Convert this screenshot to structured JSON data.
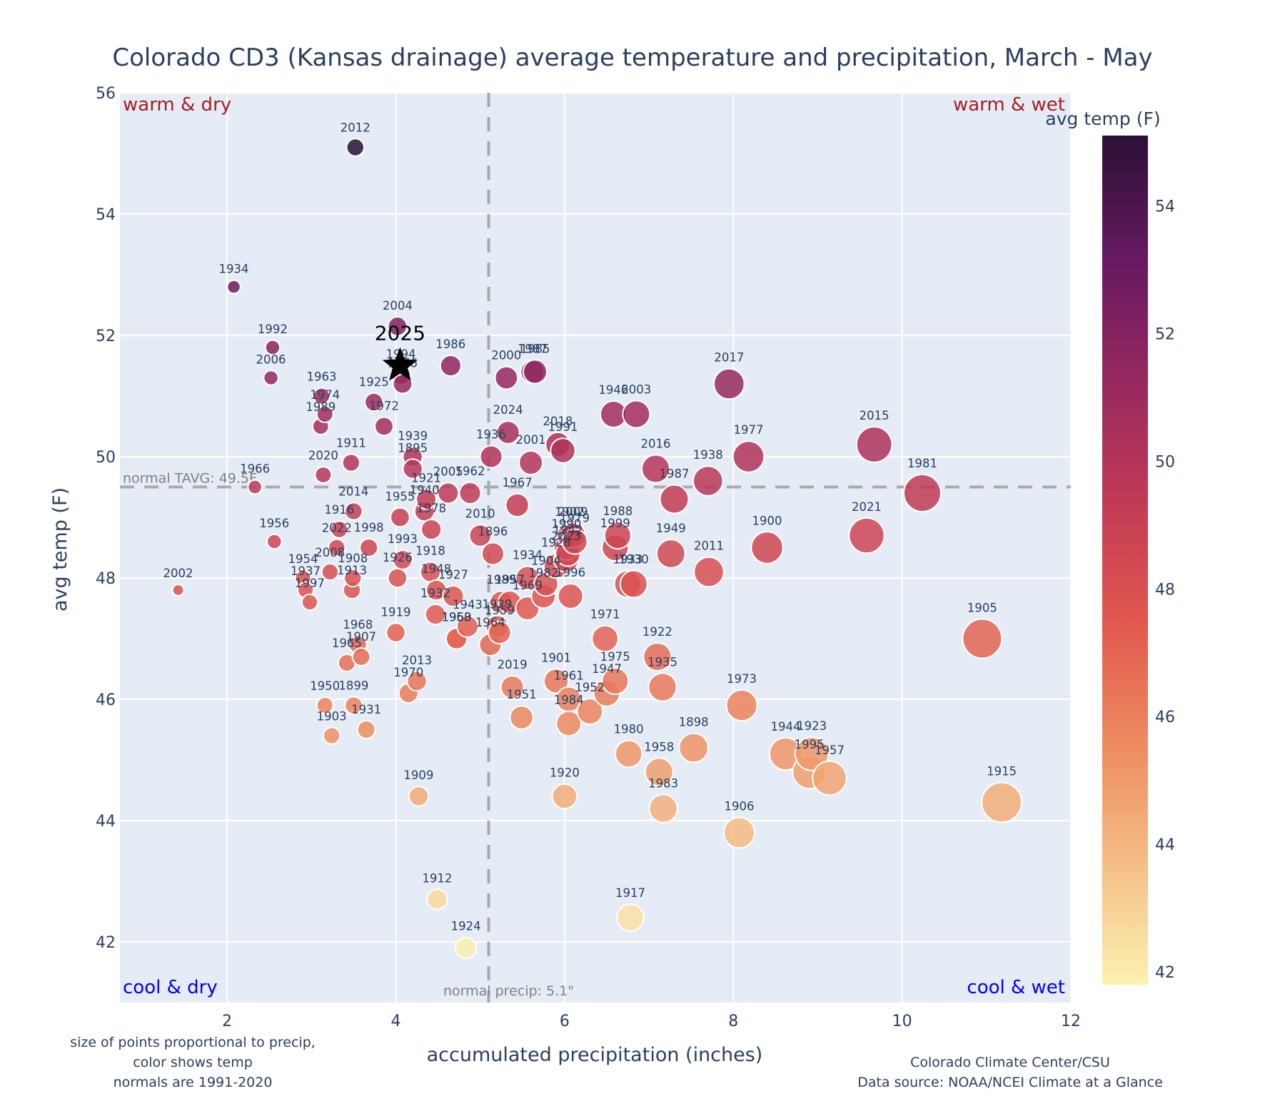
{
  "chart_data": {
    "type": "scatter",
    "title": "Colorado CD3 (Kansas drainage) average temperature and precipitation, March - May",
    "xlabel": "accumulated precipitation (inches)",
    "ylabel": "avg temp (F)",
    "xlim": [
      0.73,
      12
    ],
    "ylim": [
      41.0,
      56.0
    ],
    "xticks": [
      2,
      4,
      6,
      8,
      10,
      12
    ],
    "yticks": [
      42,
      44,
      46,
      48,
      50,
      52,
      54,
      56
    ],
    "grid": true,
    "size_encoding": "precip",
    "color_encoding": "avg temp",
    "colorbar": {
      "title": "avg temp (F)",
      "range": [
        41.8,
        55.1
      ],
      "ticks": [
        42,
        44,
        46,
        48,
        50,
        52,
        54
      ],
      "colorscale": [
        "#fcf1b2",
        "#f5be86",
        "#ed8a5f",
        "#e0584f",
        "#c03a55",
        "#95285f",
        "#651960",
        "#2b1134"
      ]
    },
    "reference_lines": {
      "normal_temp": {
        "value": 49.5,
        "label": "normal TAVG: 49.5F"
      },
      "normal_precip": {
        "value": 5.1,
        "label": "normal precip: 5.1\""
      }
    },
    "quadrant_labels": {
      "top_left": "warm & dry",
      "top_right": "warm & wet",
      "bottom_left": "cool & dry",
      "bottom_right": "cool & wet"
    },
    "highlight": {
      "label": "2025",
      "x": 4.05,
      "y": 51.5,
      "marker": "star"
    },
    "points": [
      {
        "year": "2012",
        "x": 3.52,
        "y": 55.1
      },
      {
        "year": "1934",
        "x": 2.08,
        "y": 52.8
      },
      {
        "year": "2004",
        "x": 4.02,
        "y": 52.15
      },
      {
        "year": "1992",
        "x": 2.54,
        "y": 51.8
      },
      {
        "year": "2006",
        "x": 2.52,
        "y": 51.3
      },
      {
        "year": "1994",
        "x": 4.06,
        "y": 51.35
      },
      {
        "year": "1976",
        "x": 4.08,
        "y": 51.2
      },
      {
        "year": "1963",
        "x": 3.12,
        "y": 51.0
      },
      {
        "year": "1974",
        "x": 3.16,
        "y": 50.7
      },
      {
        "year": "1989",
        "x": 3.11,
        "y": 50.5
      },
      {
        "year": "1925",
        "x": 3.74,
        "y": 50.9
      },
      {
        "year": "1972",
        "x": 3.86,
        "y": 50.5
      },
      {
        "year": "1986",
        "x": 4.65,
        "y": 51.5
      },
      {
        "year": "2000",
        "x": 5.31,
        "y": 51.3
      },
      {
        "year": "1987",
        "x": 5.62,
        "y": 51.4
      },
      {
        "year": "1985",
        "x": 5.65,
        "y": 51.4
      },
      {
        "year": "2024",
        "x": 5.33,
        "y": 50.4
      },
      {
        "year": "1936",
        "x": 5.13,
        "y": 50.0
      },
      {
        "year": "2001",
        "x": 5.6,
        "y": 49.9
      },
      {
        "year": "2018",
        "x": 5.92,
        "y": 50.2
      },
      {
        "year": "1991",
        "x": 5.98,
        "y": 50.1
      },
      {
        "year": "1946",
        "x": 6.58,
        "y": 50.7
      },
      {
        "year": "2003",
        "x": 6.85,
        "y": 50.7
      },
      {
        "year": "2017",
        "x": 7.95,
        "y": 51.2
      },
      {
        "year": "2016",
        "x": 7.08,
        "y": 49.8
      },
      {
        "year": "1987b",
        "x": 7.3,
        "y": 49.3
      },
      {
        "year": "1938",
        "x": 7.7,
        "y": 49.6
      },
      {
        "year": "1977",
        "x": 8.18,
        "y": 50.0
      },
      {
        "year": "2015",
        "x": 9.67,
        "y": 50.2
      },
      {
        "year": "1981",
        "x": 10.24,
        "y": 49.4
      },
      {
        "year": "2021",
        "x": 9.58,
        "y": 48.7
      },
      {
        "year": "1900",
        "x": 8.4,
        "y": 48.5
      },
      {
        "year": "2011",
        "x": 7.71,
        "y": 48.1
      },
      {
        "year": "1949",
        "x": 7.26,
        "y": 48.4
      },
      {
        "year": "1988",
        "x": 6.63,
        "y": 48.7
      },
      {
        "year": "1999",
        "x": 6.6,
        "y": 48.5
      },
      {
        "year": "1933",
        "x": 6.75,
        "y": 47.9
      },
      {
        "year": "1930",
        "x": 6.82,
        "y": 47.9
      },
      {
        "year": "1911",
        "x": 3.47,
        "y": 49.9
      },
      {
        "year": "2020",
        "x": 3.14,
        "y": 49.7
      },
      {
        "year": "1966",
        "x": 2.33,
        "y": 49.5
      },
      {
        "year": "1939",
        "x": 4.2,
        "y": 50.0
      },
      {
        "year": "1895",
        "x": 4.2,
        "y": 49.8
      },
      {
        "year": "1921",
        "x": 4.36,
        "y": 49.3
      },
      {
        "year": "1940",
        "x": 4.34,
        "y": 49.1
      },
      {
        "year": "2005",
        "x": 4.62,
        "y": 49.4
      },
      {
        "year": "1962",
        "x": 4.88,
        "y": 49.4
      },
      {
        "year": "1967",
        "x": 5.44,
        "y": 49.2
      },
      {
        "year": "2014",
        "x": 3.5,
        "y": 49.1
      },
      {
        "year": "1955",
        "x": 4.05,
        "y": 49.0
      },
      {
        "year": "1978",
        "x": 4.42,
        "y": 48.8
      },
      {
        "year": "2010",
        "x": 5.0,
        "y": 48.7
      },
      {
        "year": "1896",
        "x": 5.15,
        "y": 48.4
      },
      {
        "year": "1916",
        "x": 3.33,
        "y": 48.8
      },
      {
        "year": "1956",
        "x": 2.56,
        "y": 48.6
      },
      {
        "year": "2022",
        "x": 3.3,
        "y": 48.5
      },
      {
        "year": "1998",
        "x": 3.68,
        "y": 48.5
      },
      {
        "year": "1993",
        "x": 4.08,
        "y": 48.3
      },
      {
        "year": "1918",
        "x": 4.41,
        "y": 48.1
      },
      {
        "year": "2008",
        "x": 3.22,
        "y": 48.1
      },
      {
        "year": "1908",
        "x": 3.49,
        "y": 48.0
      },
      {
        "year": "1926",
        "x": 4.02,
        "y": 48.0
      },
      {
        "year": "1954",
        "x": 2.9,
        "y": 48.0
      },
      {
        "year": "1937",
        "x": 2.93,
        "y": 47.8
      },
      {
        "year": "1913",
        "x": 3.48,
        "y": 47.8
      },
      {
        "year": "1997",
        "x": 2.98,
        "y": 47.6
      },
      {
        "year": "2002",
        "x": 1.42,
        "y": 47.8
      },
      {
        "year": "1948",
        "x": 4.48,
        "y": 47.8
      },
      {
        "year": "1927",
        "x": 4.68,
        "y": 47.7
      },
      {
        "year": "1932",
        "x": 4.47,
        "y": 47.4
      },
      {
        "year": "1943",
        "x": 4.85,
        "y": 47.2
      },
      {
        "year": "1953",
        "x": 4.72,
        "y": 47.0
      },
      {
        "year": "1960",
        "x": 4.72,
        "y": 47.0
      },
      {
        "year": "1929",
        "x": 5.2,
        "y": 47.2
      },
      {
        "year": "1959",
        "x": 5.23,
        "y": 47.1
      },
      {
        "year": "1964",
        "x": 5.12,
        "y": 46.9
      },
      {
        "year": "1989b",
        "x": 5.25,
        "y": 47.6
      },
      {
        "year": "1957b",
        "x": 5.35,
        "y": 47.6
      },
      {
        "year": "1969",
        "x": 5.56,
        "y": 47.5
      },
      {
        "year": "1904",
        "x": 5.78,
        "y": 47.9
      },
      {
        "year": "1996",
        "x": 6.07,
        "y": 47.7
      },
      {
        "year": "1934b",
        "x": 5.56,
        "y": 48.0
      },
      {
        "year": "1982",
        "x": 5.75,
        "y": 47.7
      },
      {
        "year": "1928",
        "x": 5.9,
        "y": 48.2
      },
      {
        "year": "2023",
        "x": 6.02,
        "y": 48.3
      },
      {
        "year": "1942",
        "x": 6.04,
        "y": 48.4
      },
      {
        "year": "1979",
        "x": 6.12,
        "y": 48.6
      },
      {
        "year": "1990",
        "x": 6.02,
        "y": 48.5
      },
      {
        "year": "1902",
        "x": 6.06,
        "y": 48.7
      },
      {
        "year": "2009",
        "x": 6.1,
        "y": 48.7
      },
      {
        "year": "2019",
        "x": 5.38,
        "y": 46.2
      },
      {
        "year": "1951",
        "x": 5.49,
        "y": 45.7
      },
      {
        "year": "1919",
        "x": 4.0,
        "y": 47.1
      },
      {
        "year": "1968",
        "x": 3.55,
        "y": 46.9
      },
      {
        "year": "1907",
        "x": 3.59,
        "y": 46.7
      },
      {
        "year": "1965",
        "x": 3.42,
        "y": 46.6
      },
      {
        "year": "2013",
        "x": 4.25,
        "y": 46.3
      },
      {
        "year": "1970",
        "x": 4.15,
        "y": 46.1
      },
      {
        "year": "1950",
        "x": 3.16,
        "y": 45.9
      },
      {
        "year": "1899",
        "x": 3.5,
        "y": 45.9
      },
      {
        "year": "1903",
        "x": 3.24,
        "y": 45.4
      },
      {
        "year": "1931",
        "x": 3.65,
        "y": 45.5
      },
      {
        "year": "1909",
        "x": 4.27,
        "y": 44.4
      },
      {
        "year": "1912",
        "x": 4.49,
        "y": 42.7
      },
      {
        "year": "1924",
        "x": 4.83,
        "y": 41.9
      },
      {
        "year": "1920",
        "x": 6.0,
        "y": 44.4
      },
      {
        "year": "1917",
        "x": 6.78,
        "y": 42.4
      },
      {
        "year": "1901",
        "x": 5.9,
        "y": 46.3
      },
      {
        "year": "1961",
        "x": 6.05,
        "y": 46.0
      },
      {
        "year": "1984",
        "x": 6.05,
        "y": 45.6
      },
      {
        "year": "1952",
        "x": 6.3,
        "y": 45.8
      },
      {
        "year": "1947",
        "x": 6.5,
        "y": 46.1
      },
      {
        "year": "1975",
        "x": 6.6,
        "y": 46.3
      },
      {
        "year": "1971",
        "x": 6.48,
        "y": 47.0
      },
      {
        "year": "1922",
        "x": 7.1,
        "y": 46.7
      },
      {
        "year": "1935",
        "x": 7.16,
        "y": 46.2
      },
      {
        "year": "1980",
        "x": 6.76,
        "y": 45.1
      },
      {
        "year": "1958",
        "x": 7.12,
        "y": 44.8
      },
      {
        "year": "1983",
        "x": 7.17,
        "y": 44.2
      },
      {
        "year": "1898",
        "x": 7.53,
        "y": 45.2
      },
      {
        "year": "1973",
        "x": 8.1,
        "y": 45.9
      },
      {
        "year": "1906",
        "x": 8.07,
        "y": 43.8
      },
      {
        "year": "1944",
        "x": 8.62,
        "y": 45.1
      },
      {
        "year": "1923",
        "x": 8.93,
        "y": 45.1
      },
      {
        "year": "1995",
        "x": 8.9,
        "y": 44.8
      },
      {
        "year": "1957",
        "x": 9.14,
        "y": 44.7
      },
      {
        "year": "1905",
        "x": 10.95,
        "y": 47.0
      },
      {
        "year": "1915",
        "x": 11.18,
        "y": 44.3
      }
    ],
    "notes": {
      "bottom_left": [
        "size of points proportional to precip,",
        "color shows temp",
        "normals are 1991-2020"
      ],
      "bottom_right": [
        "Colorado Climate Center/CSU",
        "Data source: NOAA/NCEI Climate at a Glance"
      ]
    }
  }
}
